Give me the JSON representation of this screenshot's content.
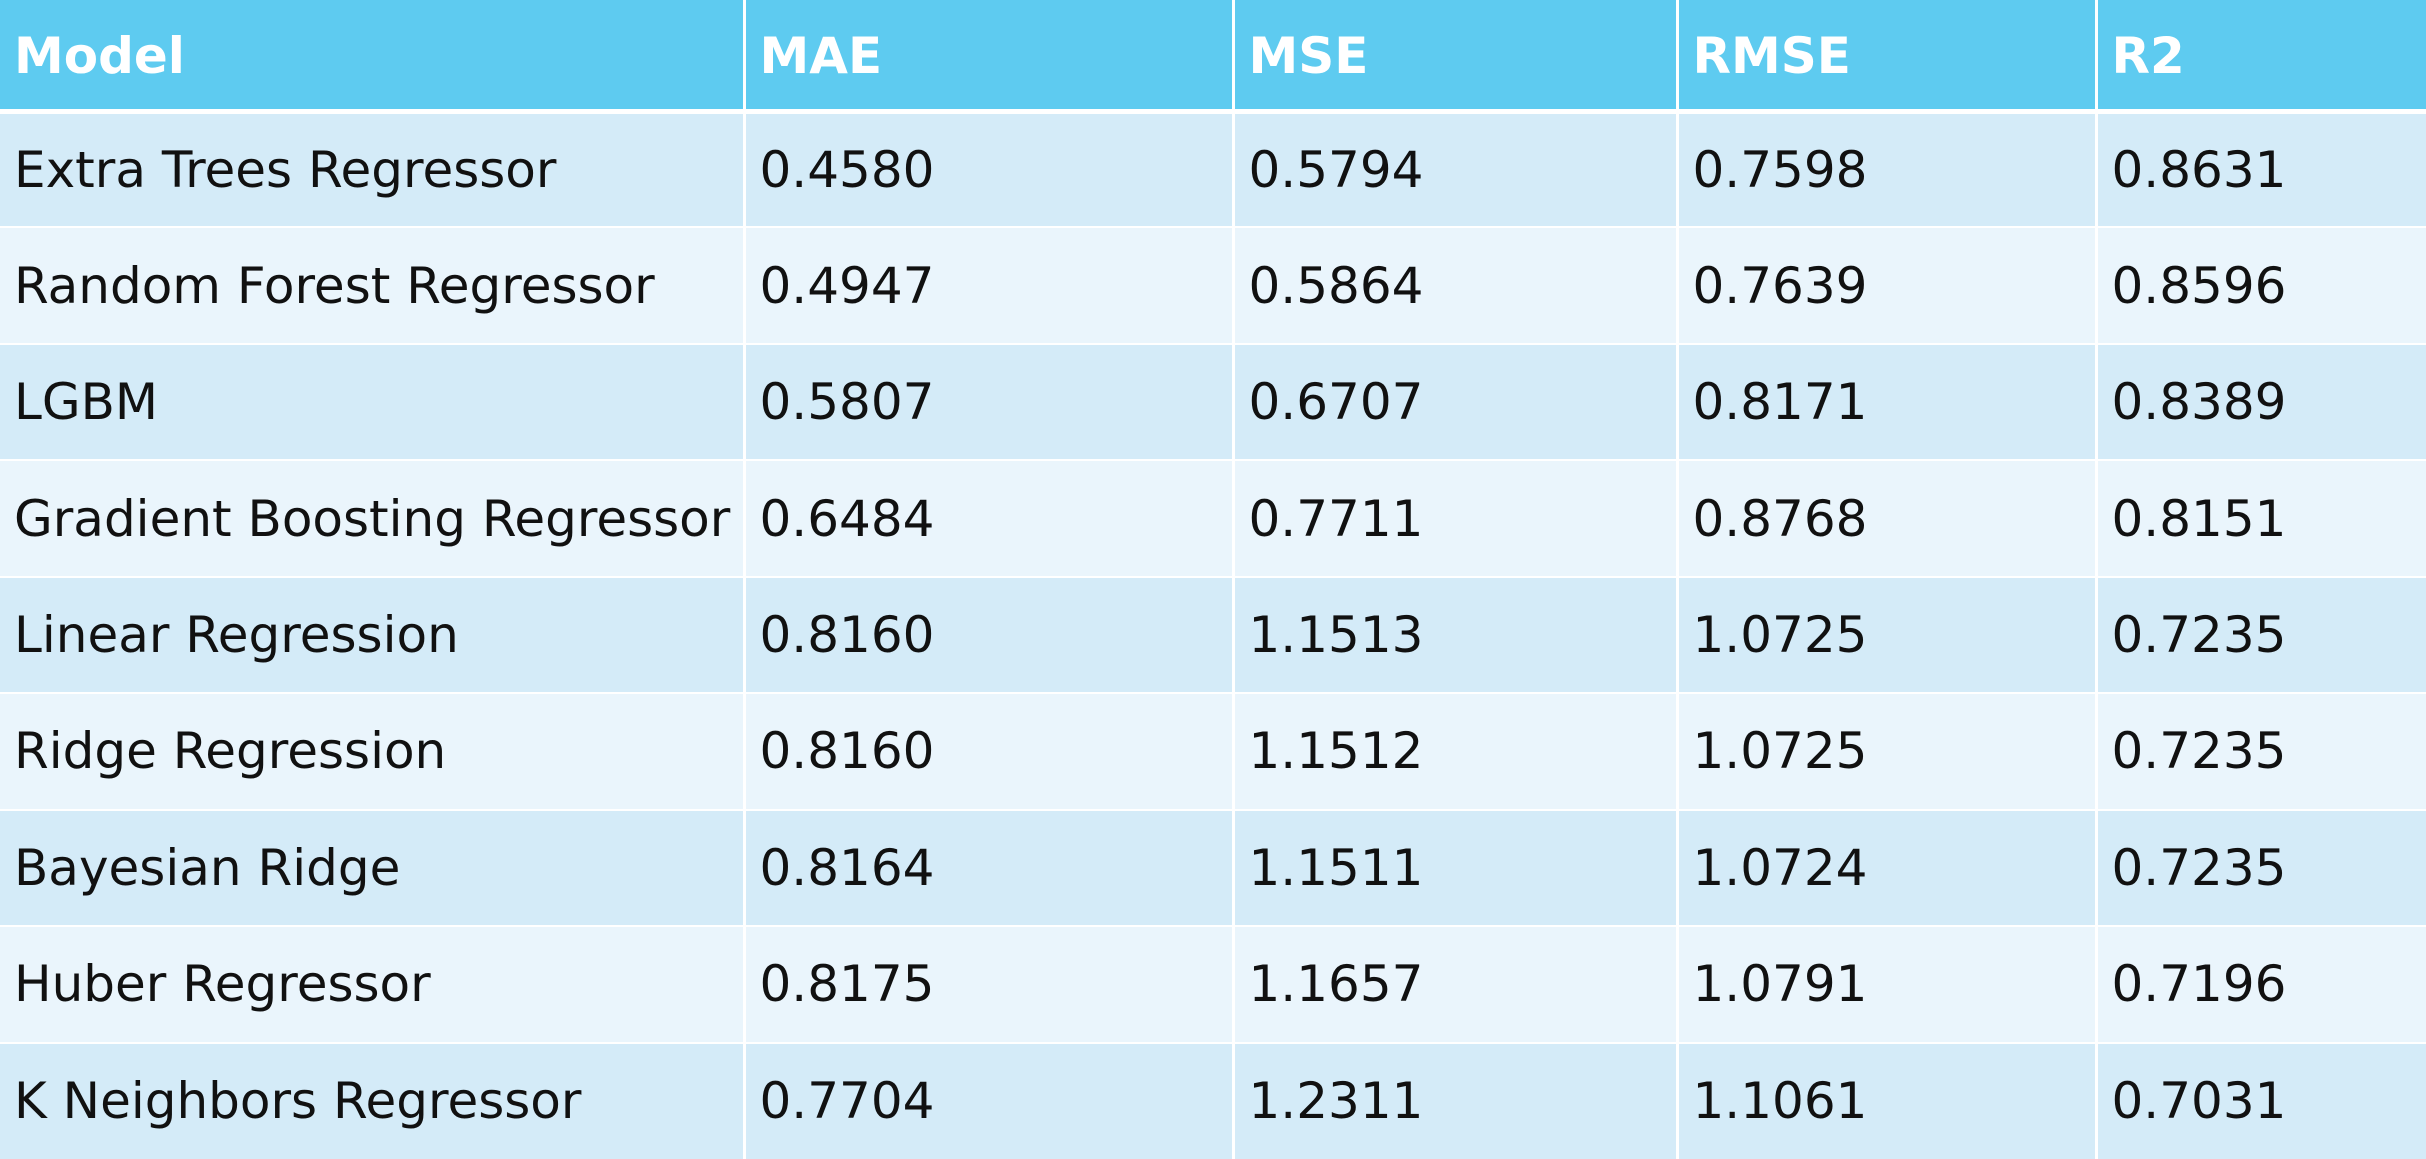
{
  "chart_data": {
    "type": "table",
    "columns": [
      "Model",
      "MAE",
      "MSE",
      "RMSE",
      "R2"
    ],
    "rows": [
      [
        "Extra Trees Regressor",
        "0.4580",
        "0.5794",
        "0.7598",
        "0.8631"
      ],
      [
        "Random Forest Regressor",
        "0.4947",
        "0.5864",
        "0.7639",
        "0.8596"
      ],
      [
        "LGBM",
        "0.5807",
        "0.6707",
        "0.8171",
        "0.8389"
      ],
      [
        "Gradient Boosting Regressor",
        "0.6484",
        "0.7711",
        "0.8768",
        "0.8151"
      ],
      [
        "Linear Regression",
        "0.8160",
        "1.1513",
        "1.0725",
        "0.7235"
      ],
      [
        "Ridge Regression",
        "0.8160",
        "1.1512",
        "1.0725",
        "0.7235"
      ],
      [
        "Bayesian Ridge",
        "0.8164",
        "1.1511",
        "1.0724",
        "0.7235"
      ],
      [
        "Huber Regressor",
        "0.8175",
        "1.1657",
        "1.0791",
        "0.7196"
      ],
      [
        "K Neighbors Regressor",
        "0.7704",
        "1.2311",
        "1.1061",
        "0.7031"
      ]
    ]
  },
  "colors": {
    "header_bg": "#5ecbf0",
    "header_text": "#ffffff",
    "row_odd_bg": "#d4ebf8",
    "row_even_bg": "#eaf5fc",
    "cell_text": "#111111",
    "grid_lines": "#ffffff"
  }
}
